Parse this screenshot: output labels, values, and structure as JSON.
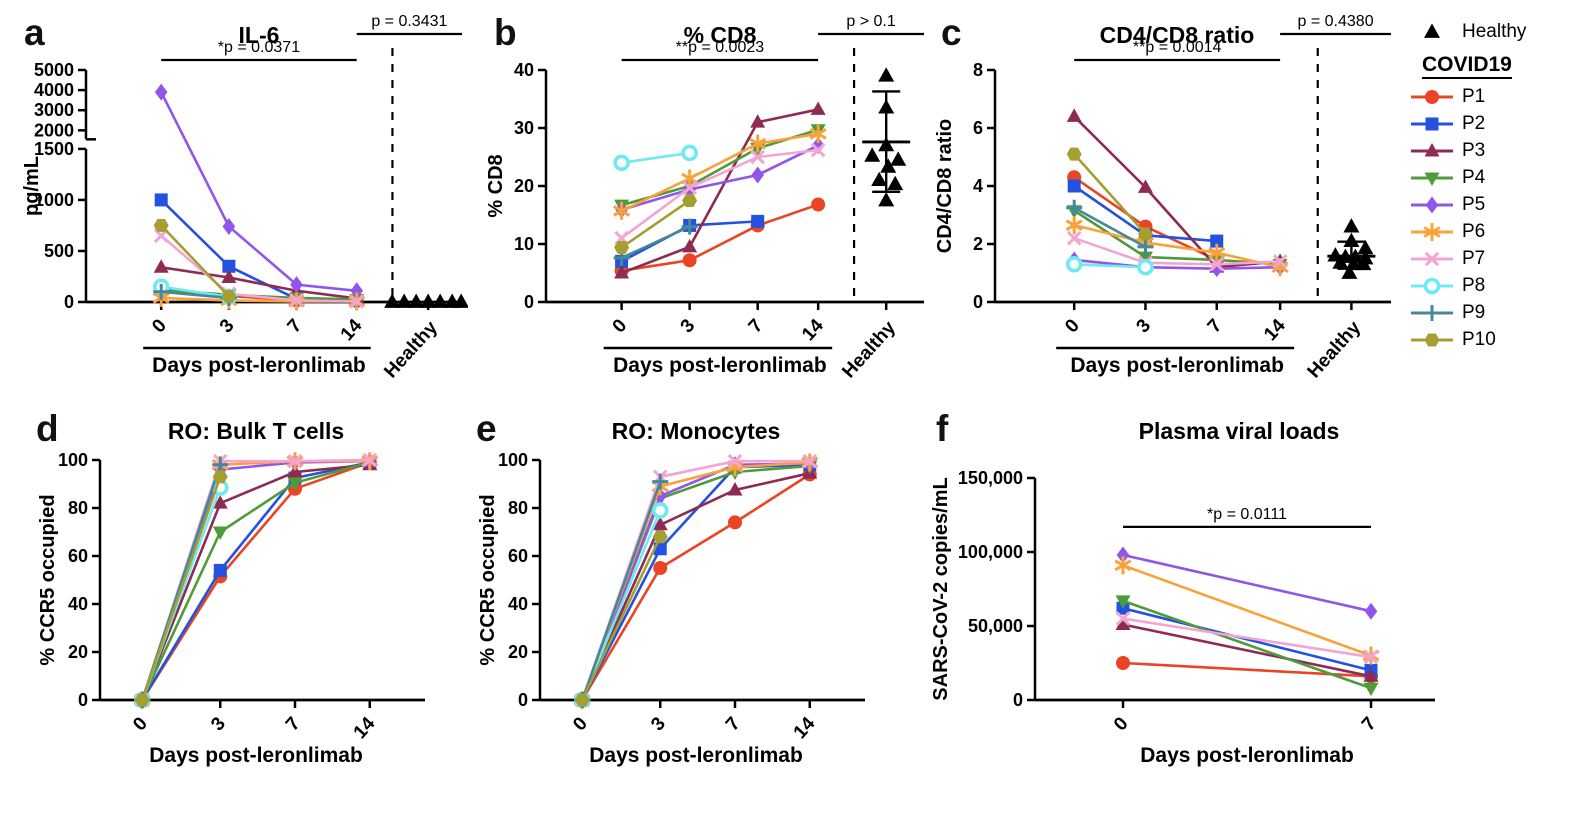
{
  "legend": {
    "healthy": {
      "label": "Healthy",
      "marker": "triangle-up",
      "color": "#000000"
    },
    "group_title": "COVID19",
    "patients": [
      {
        "name": "P1",
        "color": "#EA4425",
        "marker": "circle"
      },
      {
        "name": "P2",
        "color": "#2351E0",
        "marker": "square"
      },
      {
        "name": "P3",
        "color": "#8E2B53",
        "marker": "triangle-up"
      },
      {
        "name": "P4",
        "color": "#4E9B3A",
        "marker": "triangle-down"
      },
      {
        "name": "P5",
        "color": "#9155EB",
        "marker": "diamond"
      },
      {
        "name": "P6",
        "color": "#F8A23B",
        "marker": "asterisk"
      },
      {
        "name": "P7",
        "color": "#F3A4D3",
        "marker": "x"
      },
      {
        "name": "P8",
        "color": "#6FE9F3",
        "marker": "circle-open"
      },
      {
        "name": "P9",
        "color": "#44889B",
        "marker": "plus"
      },
      {
        "name": "P10",
        "color": "#A59E30",
        "marker": "hexagon"
      }
    ]
  },
  "chart_data": [
    {
      "id": "a",
      "label": "a",
      "title": "IL-6",
      "type": "line",
      "xlabel": "Days post-leronlimab",
      "ylabel": "pg/mL",
      "x": [
        "0",
        "3",
        "7",
        "14"
      ],
      "y_axis": {
        "segments": [
          {
            "domain": [
              0,
              1500
            ],
            "ticks": [
              0,
              500,
              1000,
              1500
            ],
            "tick_labels": [
              "0",
              "500",
              "1000",
              "1500"
            ]
          },
          {
            "domain": [
              2000,
              5000
            ],
            "ticks": [
              2000,
              3000,
              4000,
              5000
            ],
            "tick_labels": [
              "2000",
              "3000",
              "4000",
              "5000"
            ]
          }
        ]
      },
      "p_bars": [
        {
          "text": "*p = 0.0371",
          "span": "days"
        },
        {
          "text": "p = 0.3431",
          "span": "healthy"
        }
      ],
      "series": [
        {
          "name": "P1",
          "values": [
            130,
            60,
            15,
            10
          ]
        },
        {
          "name": "P2",
          "values": [
            1000,
            350,
            30,
            15
          ]
        },
        {
          "name": "P3",
          "values": [
            340,
            240,
            110,
            35
          ]
        },
        {
          "name": "P4",
          "values": [
            120,
            70,
            40,
            25
          ]
        },
        {
          "name": "P5",
          "values": [
            3900,
            740,
            170,
            110
          ]
        },
        {
          "name": "P6",
          "values": [
            40,
            15,
            5,
            5
          ]
        },
        {
          "name": "P7",
          "values": [
            650,
            80,
            15,
            5
          ]
        },
        {
          "name": "P8",
          "values": [
            150,
            50,
            null,
            null
          ]
        },
        {
          "name": "P9",
          "values": [
            100,
            40,
            null,
            null
          ]
        },
        {
          "name": "P10",
          "values": [
            750,
            55,
            null,
            null
          ]
        }
      ],
      "healthy": {
        "label": "Healthy",
        "points": [
          [
            -36,
            0
          ],
          [
            -24,
            0
          ],
          [
            -12,
            0
          ],
          [
            0,
            0
          ],
          [
            12,
            0
          ],
          [
            24,
            0
          ],
          [
            33,
            0
          ]
        ]
      }
    },
    {
      "id": "b",
      "label": "b",
      "title": "% CD8",
      "type": "line",
      "xlabel": "Days post-leronlimab",
      "ylabel": "% CD8",
      "x": [
        "0",
        "3",
        "7",
        "14"
      ],
      "y_axis": {
        "domain": [
          0,
          40
        ],
        "ticks": [
          0,
          10,
          20,
          30,
          40
        ],
        "tick_labels": [
          "0",
          "10",
          "20",
          "30",
          "40"
        ]
      },
      "p_bars": [
        {
          "text": "**p = 0.0023",
          "span": "days"
        },
        {
          "text": "p > 0.1",
          "span": "healthy"
        }
      ],
      "series": [
        {
          "name": "P1",
          "values": [
            5.4,
            7.2,
            13.2,
            16.8
          ]
        },
        {
          "name": "P2",
          "values": [
            7.0,
            13.2,
            13.9,
            null
          ]
        },
        {
          "name": "P3",
          "values": [
            5.0,
            9.5,
            31.0,
            33.2
          ]
        },
        {
          "name": "P4",
          "values": [
            16.7,
            20.0,
            26.5,
            29.7
          ]
        },
        {
          "name": "P5",
          "values": [
            15.9,
            19.4,
            21.9,
            27.0
          ]
        },
        {
          "name": "P6",
          "values": [
            15.7,
            21.3,
            27.3,
            29.0
          ]
        },
        {
          "name": "P7",
          "values": [
            11.0,
            19.7,
            25.0,
            26.2
          ]
        },
        {
          "name": "P8",
          "values": [
            24.0,
            25.7,
            null,
            null
          ]
        },
        {
          "name": "P9",
          "values": [
            7.6,
            13.0,
            null,
            null
          ]
        },
        {
          "name": "P10",
          "values": [
            9.4,
            17.5,
            null,
            null
          ]
        }
      ],
      "healthy": {
        "label": "Healthy",
        "points": [
          [
            0,
            39
          ],
          [
            0,
            33.5
          ],
          [
            0,
            27
          ],
          [
            -14,
            25.2
          ],
          [
            12,
            24.5
          ],
          [
            2,
            23.3
          ],
          [
            -7,
            21
          ],
          [
            9,
            20.3
          ],
          [
            0,
            17.5
          ]
        ],
        "stats": {
          "mean": 27.6,
          "upper": 36.3,
          "lower": 19.0
        }
      }
    },
    {
      "id": "c",
      "label": "c",
      "title": "CD4/CD8 ratio",
      "type": "line",
      "xlabel": "Days post-leronlimab",
      "ylabel": "CD4/CD8 ratio",
      "x": [
        "0",
        "3",
        "7",
        "14"
      ],
      "y_axis": {
        "domain": [
          0,
          8
        ],
        "ticks": [
          0,
          2,
          4,
          6,
          8
        ],
        "tick_labels": [
          "0",
          "2",
          "4",
          "6",
          "8"
        ]
      },
      "p_bars": [
        {
          "text": "**p = 0.0014",
          "span": "days"
        },
        {
          "text": "p = 0.4380",
          "span": "healthy"
        }
      ],
      "series": [
        {
          "name": "P1",
          "values": [
            4.3,
            2.6,
            1.45,
            null
          ]
        },
        {
          "name": "P2",
          "values": [
            4.0,
            2.3,
            2.1,
            null
          ]
        },
        {
          "name": "P3",
          "values": [
            6.4,
            3.95,
            1.2,
            1.4
          ]
        },
        {
          "name": "P4",
          "values": [
            3.15,
            1.55,
            1.45,
            1.3
          ]
        },
        {
          "name": "P5",
          "values": [
            1.45,
            1.2,
            1.15,
            1.2
          ]
        },
        {
          "name": "P6",
          "values": [
            2.65,
            2.05,
            1.7,
            1.2
          ]
        },
        {
          "name": "P7",
          "values": [
            2.2,
            1.35,
            1.3,
            1.4
          ]
        },
        {
          "name": "P8",
          "values": [
            1.3,
            1.2,
            null,
            null
          ]
        },
        {
          "name": "P9",
          "values": [
            3.25,
            1.9,
            null,
            null
          ]
        },
        {
          "name": "P10",
          "values": [
            5.1,
            2.35,
            null,
            null
          ]
        }
      ],
      "healthy": {
        "label": "Healthy",
        "points": [
          [
            0,
            2.6
          ],
          [
            0,
            2.1
          ],
          [
            14,
            1.85
          ],
          [
            -16,
            1.6
          ],
          [
            -6,
            1.55
          ],
          [
            4,
            1.55
          ],
          [
            14,
            1.5
          ],
          [
            -11,
            1.35
          ],
          [
            2,
            1.3
          ],
          [
            12,
            1.3
          ],
          [
            -2,
            1.0
          ]
        ],
        "stats": {
          "mean": 1.58,
          "upper": 2.08,
          "lower": 1.15
        }
      }
    },
    {
      "id": "d",
      "label": "d",
      "title": "RO: Bulk T cells",
      "type": "line",
      "xlabel": "Days post-leronlimab",
      "ylabel": "% CCR5 occupied",
      "x": [
        "0",
        "3",
        "7",
        "14"
      ],
      "y_axis": {
        "domain": [
          0,
          100
        ],
        "ticks": [
          0,
          20,
          40,
          60,
          80,
          100
        ],
        "tick_labels": [
          "0",
          "20",
          "40",
          "60",
          "80",
          "100"
        ]
      },
      "series": [
        {
          "name": "P1",
          "values": [
            0,
            51.5,
            88,
            99
          ]
        },
        {
          "name": "P2",
          "values": [
            0,
            54,
            92.5,
            99
          ]
        },
        {
          "name": "P3",
          "values": [
            0,
            82,
            95,
            98
          ]
        },
        {
          "name": "P4",
          "values": [
            0,
            70,
            90.5,
            99
          ]
        },
        {
          "name": "P5",
          "values": [
            0,
            96,
            99,
            99.5
          ]
        },
        {
          "name": "P6",
          "values": [
            0,
            98,
            99.5,
            99.5
          ]
        },
        {
          "name": "P7",
          "values": [
            0,
            99.5,
            99.5,
            100
          ]
        },
        {
          "name": "P8",
          "values": [
            0,
            88.5,
            null,
            null
          ]
        },
        {
          "name": "P9",
          "values": [
            0,
            98,
            null,
            null
          ]
        },
        {
          "name": "P10",
          "values": [
            0,
            93,
            null,
            null
          ]
        }
      ]
    },
    {
      "id": "e",
      "label": "e",
      "title": "RO: Monocytes",
      "type": "line",
      "xlabel": "Days post-leronlimab",
      "ylabel": "% CCR5 occupied",
      "x": [
        "0",
        "3",
        "7",
        "14"
      ],
      "y_axis": {
        "domain": [
          0,
          100
        ],
        "ticks": [
          0,
          20,
          40,
          60,
          80,
          100
        ],
        "tick_labels": [
          "0",
          "20",
          "40",
          "60",
          "80",
          "100"
        ]
      },
      "series": [
        {
          "name": "P1",
          "values": [
            0,
            55,
            74,
            94
          ]
        },
        {
          "name": "P2",
          "values": [
            0,
            63,
            97,
            98
          ]
        },
        {
          "name": "P3",
          "values": [
            0,
            73,
            87.5,
            94.5
          ]
        },
        {
          "name": "P4",
          "values": [
            0,
            84,
            95,
            97.5
          ]
        },
        {
          "name": "P5",
          "values": [
            0,
            85,
            98,
            98.5
          ]
        },
        {
          "name": "P6",
          "values": [
            0,
            89,
            97,
            99
          ]
        },
        {
          "name": "P7",
          "values": [
            0,
            93,
            99.5,
            99.5
          ]
        },
        {
          "name": "P8",
          "values": [
            0,
            79,
            null,
            null
          ]
        },
        {
          "name": "P9",
          "values": [
            0,
            91,
            null,
            null
          ]
        },
        {
          "name": "P10",
          "values": [
            0,
            68,
            null,
            null
          ]
        }
      ]
    },
    {
      "id": "f",
      "label": "f",
      "title": "Plasma viral loads",
      "type": "line",
      "xlabel": "Days post-leronlimab",
      "ylabel": "SARS-CoV-2 copies/mL",
      "x": [
        "0",
        "7"
      ],
      "y_axis": {
        "domain": [
          0,
          150000
        ],
        "ticks": [
          0,
          50000,
          100000,
          150000
        ],
        "tick_labels": [
          "0",
          "50,000",
          "100,000",
          "150,000"
        ]
      },
      "p_bars": [
        {
          "text": "*p = 0.0111",
          "span": "days"
        }
      ],
      "series": [
        {
          "name": "P1",
          "values": [
            25000,
            16000
          ]
        },
        {
          "name": "P2",
          "values": [
            62000,
            20000
          ]
        },
        {
          "name": "P3",
          "values": [
            51000,
            16000
          ]
        },
        {
          "name": "P4",
          "values": [
            67000,
            8000
          ]
        },
        {
          "name": "P5",
          "values": [
            98000,
            60000
          ]
        },
        {
          "name": "P6",
          "values": [
            91000,
            30000
          ]
        },
        {
          "name": "P7",
          "values": [
            55000,
            29000
          ]
        }
      ]
    }
  ]
}
